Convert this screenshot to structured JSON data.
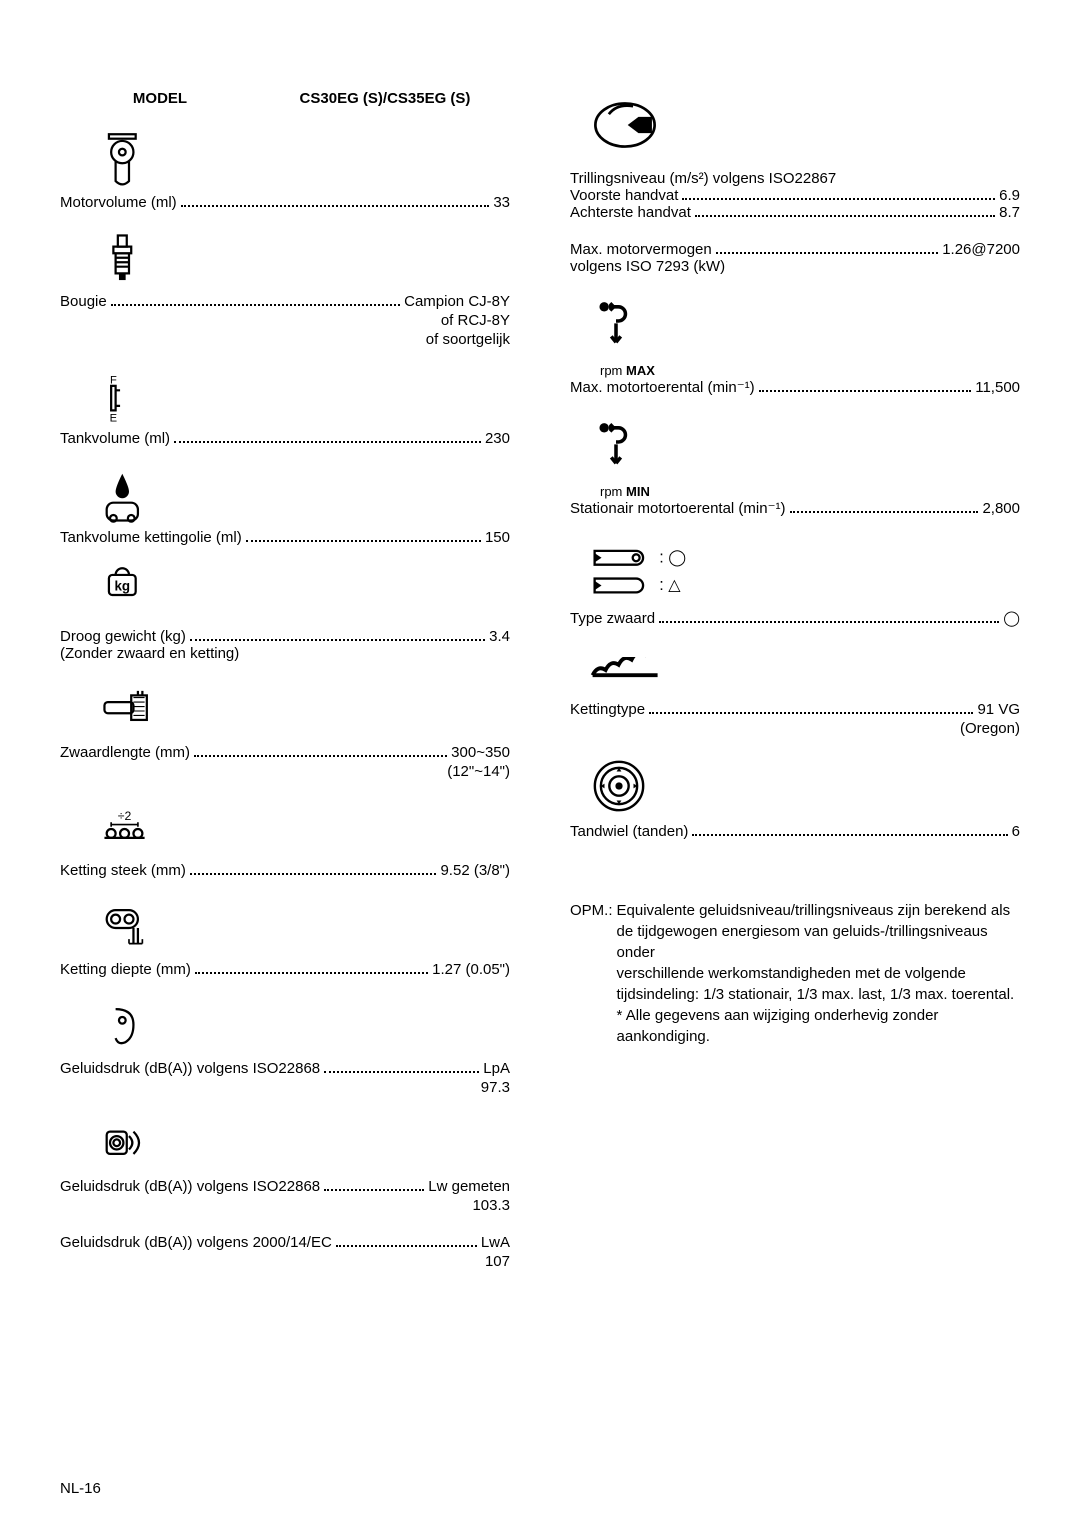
{
  "header": {
    "model_label": "MODEL",
    "model_value": "CS30EG (S)/CS35EG (S)"
  },
  "left": [
    {
      "icon": "piston",
      "label": "Motorvolume (ml)",
      "value": "33"
    },
    {
      "icon": "sparkplug",
      "label": "Bougie",
      "value": "Campion CJ-8Y",
      "sub": [
        "of RCJ-8Y",
        "of soortgelijk"
      ]
    },
    {
      "icon": "fueltank",
      "label": "Tankvolume (ml)",
      "value": "230"
    },
    {
      "icon": "oiltank",
      "label": "Tankvolume kettingolie (ml)",
      "value": "150"
    },
    {
      "icon": "weight",
      "label": "Droog gewicht (kg)",
      "value": "3.4",
      "subLeft": "(Zonder zwaard en ketting)"
    },
    {
      "icon": "sawlength",
      "label": "Zwaardlengte (mm)",
      "value": "300~350",
      "sub": [
        "(12\"~14\")"
      ]
    },
    {
      "icon": "pitch",
      "label": "Ketting steek (mm)",
      "value": "9.52 (3/8\")"
    },
    {
      "icon": "gauge",
      "label": "Ketting diepte (mm)",
      "value": "1.27 (0.05\")"
    },
    {
      "icon": "ear",
      "label": "Geluidsdruk (dB(A)) volgens ISO22868",
      "value": "LpA",
      "sub": [
        "97.3"
      ]
    },
    {
      "icon": "speaker",
      "label": "Geluidsdruk (dB(A)) volgens ISO22868",
      "value": "Lw gemeten",
      "sub": [
        "103.3"
      ]
    },
    {
      "icon": "",
      "label": "Geluidsdruk (dB(A)) volgens 2000/14/EC",
      "value": "LwA",
      "sub": [
        "107"
      ]
    }
  ],
  "right": {
    "vibration": {
      "title": "Trillingsniveau (m/s²) volgens ISO22867",
      "front_label": "Voorste handvat",
      "front_val": "6.9",
      "rear_label": "Achterste handvat",
      "rear_val": "8.7"
    },
    "power": {
      "label": "Max. motorvermogen",
      "value": "1.26@7200",
      "sub": "volgens ISO 7293 (kW)"
    },
    "rpm_max": {
      "caption": "rpm MAX",
      "label": "Max. motortoerental (min⁻¹)",
      "value": "11,500"
    },
    "rpm_min": {
      "caption": "rpm MIN",
      "label": "Stationair motortoerental (min⁻¹)",
      "value": "2,800"
    },
    "bartype": {
      "label": "Type zwaard",
      "value": "◯"
    },
    "chaintype": {
      "label": "Kettingtype",
      "value": "91 VG",
      "sub": "(Oregon)"
    },
    "sprocket": {
      "label": "Tandwiel (tanden)",
      "value": "6"
    }
  },
  "note": {
    "prefix": "OPM.:",
    "lines": [
      "Equivalente geluidsniveau/trillingsniveaus zijn berekend als",
      "de tijdgewogen energiesom van geluids-/trillingsniveaus onder",
      "verschillende werkomstandigheden met de volgende",
      "tijdsindeling: 1/3 stationair, 1/3 max. last, 1/3 max. toerental.",
      "* Alle gegevens aan wijziging onderhevig zonder aankondiging."
    ]
  },
  "page": "NL-16"
}
